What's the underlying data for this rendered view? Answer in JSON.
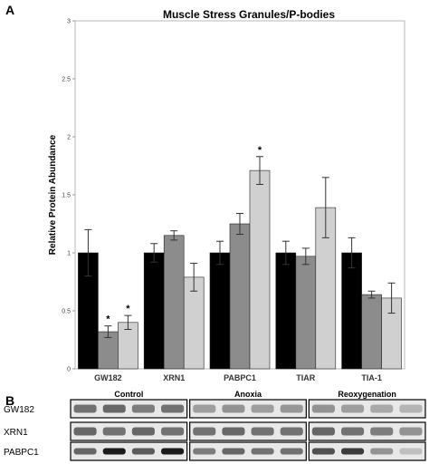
{
  "panels": {
    "a_label": "A",
    "b_label": "B"
  },
  "chart_data": {
    "type": "bar",
    "title": "Muscle Stress Granules/P-bodies",
    "ylabel": "Relative Protein Abundance",
    "xlabel": "",
    "ylim": [
      0,
      3
    ],
    "yticks": [
      "0",
      "0.5",
      "1",
      "1.5",
      "2",
      "2.5",
      "3"
    ],
    "categories": [
      "GW182",
      "XRN1",
      "PABPC1",
      "TIAR",
      "TIA-1"
    ],
    "series": [
      {
        "color": "#000000",
        "values": [
          1.0,
          1.0,
          1.0,
          1.0,
          1.0
        ],
        "errors": [
          0.2,
          0.08,
          0.1,
          0.1,
          0.13
        ]
      },
      {
        "color": "#8c8c8c",
        "values": [
          0.32,
          1.15,
          1.25,
          0.97,
          0.64
        ],
        "errors": [
          0.05,
          0.04,
          0.09,
          0.07,
          0.03
        ]
      },
      {
        "color": "#d0d0d0",
        "values": [
          0.4,
          0.79,
          1.71,
          1.39,
          0.61
        ],
        "errors": [
          0.06,
          0.12,
          0.12,
          0.26,
          0.13
        ]
      }
    ],
    "significance": [
      {
        "category": "GW182",
        "series_index": 1,
        "mark": "*"
      },
      {
        "category": "GW182",
        "series_index": 2,
        "mark": "*"
      },
      {
        "category": "PABPC1",
        "series_index": 2,
        "mark": "*"
      }
    ],
    "grid": false
  },
  "blot": {
    "conditions": [
      "Control",
      "Anoxia",
      "Reoxygenation"
    ],
    "proteins": [
      "GW182",
      "XRN1",
      "PABPC1"
    ],
    "band_intensity": [
      [
        [
          0.55,
          0.6,
          0.5,
          0.55
        ],
        [
          0.35,
          0.4,
          0.35,
          0.38
        ],
        [
          0.4,
          0.35,
          0.3,
          0.25
        ]
      ],
      [
        [
          0.6,
          0.55,
          0.6,
          0.55
        ],
        [
          0.55,
          0.6,
          0.55,
          0.55
        ],
        [
          0.6,
          0.55,
          0.5,
          0.4
        ]
      ],
      [
        [
          0.6,
          0.95,
          0.65,
          0.95
        ],
        [
          0.5,
          0.6,
          0.55,
          0.55
        ],
        [
          0.7,
          0.8,
          0.4,
          0.2
        ]
      ]
    ]
  }
}
